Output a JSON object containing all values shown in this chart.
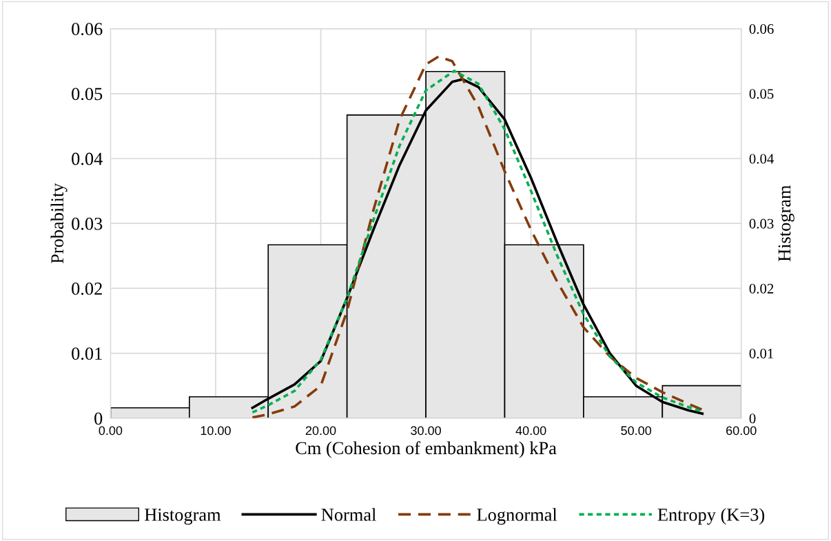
{
  "chart_data": {
    "type": "histogram",
    "xlabel": "Cm (Cohesion of embankment) kPa",
    "ylabel": "Probability",
    "y2label": "Histogram",
    "bins": [
      0,
      7.5,
      15,
      22.5,
      30,
      37.5,
      45,
      52.5,
      60
    ],
    "series": [
      {
        "name": "Histogram",
        "axis": "y2",
        "color": "#e7e6e6",
        "values": [
          0.0016,
          0.0033,
          0.0267,
          0.0467,
          0.0534,
          0.0267,
          0.0033,
          0.005
        ]
      },
      {
        "name": "Normal",
        "type": "line",
        "color": "#000000",
        "line_style": "solid",
        "x": [
          13.5,
          15,
          17.5,
          20,
          22.5,
          25,
          27.5,
          30,
          32.5,
          33.5,
          35,
          37.5,
          40,
          42.5,
          45,
          47.5,
          50,
          52.5,
          55,
          56.3
        ],
        "values": [
          0.0016,
          0.003,
          0.0052,
          0.0088,
          0.0185,
          0.029,
          0.039,
          0.0474,
          0.0518,
          0.0522,
          0.051,
          0.046,
          0.037,
          0.027,
          0.0175,
          0.01,
          0.005,
          0.0025,
          0.0012,
          0.0007
        ]
      },
      {
        "name": "Lognormal",
        "type": "line",
        "color": "#843c0c",
        "line_style": "dashed",
        "x": [
          13.5,
          15,
          17.5,
          20,
          22.5,
          25,
          27.5,
          30,
          31.2,
          32.5,
          35,
          37.5,
          40,
          42.5,
          45,
          47.5,
          50,
          52.5,
          55,
          56.3
        ],
        "values": [
          0.0001,
          0.0006,
          0.0018,
          0.005,
          0.0165,
          0.032,
          0.046,
          0.0545,
          0.0557,
          0.055,
          0.048,
          0.038,
          0.029,
          0.021,
          0.014,
          0.0095,
          0.0062,
          0.004,
          0.0022,
          0.0013
        ]
      },
      {
        "name": "Entropy (K=3)",
        "type": "line",
        "color": "#00b050",
        "line_style": "dotted",
        "x": [
          13.5,
          15,
          17.5,
          20,
          22.5,
          25,
          27.5,
          30,
          32.7,
          35,
          37.5,
          40,
          42.5,
          45,
          47.5,
          50,
          52.5,
          55,
          56.3
        ],
        "values": [
          0.0009,
          0.002,
          0.0042,
          0.009,
          0.0185,
          0.0305,
          0.042,
          0.0505,
          0.0535,
          0.0515,
          0.0445,
          0.035,
          0.025,
          0.016,
          0.0095,
          0.0055,
          0.0032,
          0.0017,
          0.001
        ]
      }
    ],
    "xlim": [
      0,
      60
    ],
    "xticks": [
      {
        "value": 0,
        "label": "0.00"
      },
      {
        "value": 10,
        "label": "10.00"
      },
      {
        "value": 20,
        "label": "20.00"
      },
      {
        "value": 30,
        "label": "30.00"
      },
      {
        "value": 40,
        "label": "40.00"
      },
      {
        "value": 50,
        "label": "50.00"
      },
      {
        "value": 60,
        "label": "60.00"
      }
    ],
    "ylim": [
      0,
      0.06
    ],
    "yticks": [
      {
        "value": 0,
        "label": "0"
      },
      0.01,
      0.02,
      0.03,
      0.04,
      0.05,
      0.06
    ],
    "y2lim": [
      0,
      0.06
    ],
    "y2ticks": [
      {
        "value": 0,
        "label": "0"
      },
      0.01,
      0.02,
      0.03,
      0.04,
      0.05,
      0.06
    ],
    "grid": true,
    "legend": "bottom"
  }
}
